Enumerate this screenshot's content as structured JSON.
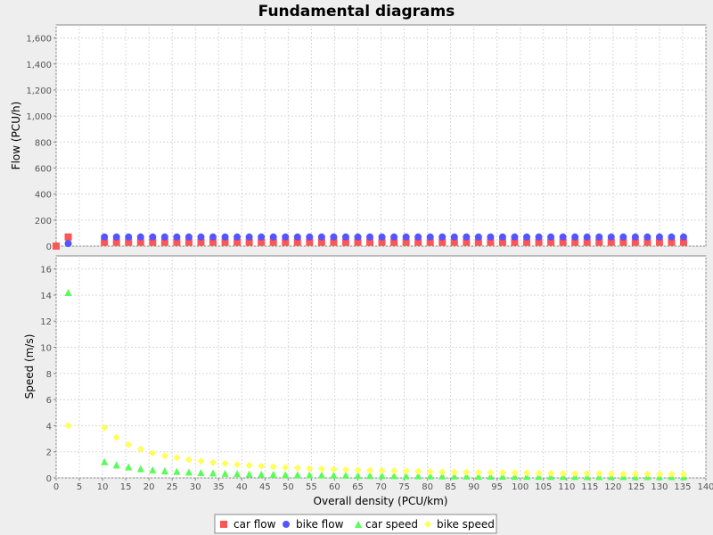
{
  "chart_data": {
    "type": "scatter",
    "title": "Fundamental diagrams",
    "xlabel": "Overall density (PCU/km)",
    "xlim": [
      0,
      140
    ],
    "x_ticks": [
      "0",
      "5",
      "10",
      "15",
      "20",
      "25",
      "30",
      "35",
      "40",
      "45",
      "50",
      "55",
      "60",
      "65",
      "70",
      "75",
      "80",
      "85",
      "90",
      "95",
      "100",
      "105",
      "110",
      "115",
      "120",
      "125",
      "130",
      "135",
      "140"
    ],
    "grid": true,
    "legend_position": "bottom",
    "legend": [
      "car flow",
      "bike flow",
      "car speed",
      "bike speed"
    ],
    "subplots": [
      {
        "ylabel": "Flow (PCU/h)",
        "ylim": [
          0,
          1700
        ],
        "y_ticks": [
          "0",
          "200",
          "400",
          "600",
          "800",
          "1,000",
          "1,200",
          "1,400",
          "1,600"
        ],
        "series": [
          {
            "name": "car flow",
            "color": "#ff5555",
            "marker": "square",
            "x": [
              0,
              2.6,
              10.4,
              13,
              15.6,
              18.2,
              20.8,
              23.4,
              26,
              28.6,
              31.2,
              33.8,
              36.4,
              39,
              41.6,
              44.2,
              46.8,
              49.4,
              52,
              54.6,
              57.2,
              59.8,
              62.4,
              65,
              67.6,
              70.2,
              72.8,
              75.4,
              78,
              80.6,
              83.2,
              85.8,
              88.4,
              91,
              93.6,
              96.2,
              98.8,
              101.4,
              104,
              106.6,
              109.2,
              111.8,
              114.4,
              117,
              119.6,
              122.2,
              124.8,
              127.4,
              130,
              132.6,
              135.2
            ],
            "y": [
              0,
              70,
              30,
              30,
              30,
              30,
              30,
              30,
              30,
              30,
              30,
              30,
              30,
              30,
              30,
              30,
              30,
              30,
              30,
              30,
              30,
              30,
              30,
              30,
              30,
              30,
              30,
              30,
              30,
              30,
              30,
              30,
              30,
              30,
              30,
              30,
              30,
              30,
              30,
              30,
              30,
              30,
              30,
              30,
              30,
              30,
              30,
              30,
              30,
              30,
              30
            ]
          },
          {
            "name": "bike flow",
            "color": "#5555ff",
            "marker": "circle",
            "x": [
              2.6,
              10.4,
              13,
              15.6,
              18.2,
              20.8,
              23.4,
              26,
              28.6,
              31.2,
              33.8,
              36.4,
              39,
              41.6,
              44.2,
              46.8,
              49.4,
              52,
              54.6,
              57.2,
              59.8,
              62.4,
              65,
              67.6,
              70.2,
              72.8,
              75.4,
              78,
              80.6,
              83.2,
              85.8,
              88.4,
              91,
              93.6,
              96.2,
              98.8,
              101.4,
              104,
              106.6,
              109.2,
              111.8,
              114.4,
              117,
              119.6,
              122.2,
              124.8,
              127.4,
              130,
              132.6,
              135.2
            ],
            "y": [
              20,
              70,
              70,
              70,
              70,
              70,
              70,
              70,
              70,
              70,
              70,
              70,
              70,
              70,
              70,
              70,
              70,
              70,
              70,
              70,
              70,
              70,
              70,
              70,
              70,
              70,
              70,
              70,
              70,
              70,
              70,
              70,
              70,
              70,
              70,
              70,
              70,
              70,
              70,
              70,
              70,
              70,
              70,
              70,
              70,
              70,
              70,
              70,
              70,
              70
            ]
          }
        ]
      },
      {
        "ylabel": "Speed (m/s)",
        "ylim": [
          0,
          17
        ],
        "y_ticks": [
          "0",
          "2",
          "4",
          "6",
          "8",
          "10",
          "12",
          "14",
          "16"
        ],
        "series": [
          {
            "name": "car speed",
            "color": "#55ff55",
            "marker": "triangle",
            "x": [
              2.6,
              10.4,
              13,
              15.6,
              18.2,
              20.8,
              23.4,
              26,
              28.6,
              31.2,
              33.8,
              36.4,
              39,
              41.6,
              44.2,
              46.8,
              49.4,
              52,
              54.6,
              57.2,
              59.8,
              62.4,
              65,
              67.6,
              70.2,
              72.8,
              75.4,
              78,
              80.6,
              83.2,
              85.8,
              88.4,
              91,
              93.6,
              96.2,
              98.8,
              101.4,
              104,
              106.6,
              109.2,
              111.8,
              114.4,
              117,
              119.6,
              122.2,
              124.8,
              127.4,
              130,
              132.6,
              135.2
            ],
            "y": [
              14.2,
              1.25,
              1.0,
              0.85,
              0.72,
              0.62,
              0.55,
              0.5,
              0.45,
              0.42,
              0.38,
              0.35,
              0.33,
              0.31,
              0.29,
              0.28,
              0.26,
              0.25,
              0.24,
              0.23,
              0.22,
              0.21,
              0.2,
              0.19,
              0.19,
              0.18,
              0.17,
              0.17,
              0.16,
              0.16,
              0.15,
              0.15,
              0.14,
              0.14,
              0.14,
              0.13,
              0.13,
              0.13,
              0.12,
              0.12,
              0.12,
              0.11,
              0.11,
              0.11,
              0.11,
              0.1,
              0.1,
              0.1,
              0.1,
              0.1
            ]
          },
          {
            "name": "bike speed",
            "color": "#ffff55",
            "marker": "diamond",
            "x": [
              2.6,
              10.4,
              13,
              15.6,
              18.2,
              20.8,
              23.4,
              26,
              28.6,
              31.2,
              33.8,
              36.4,
              39,
              41.6,
              44.2,
              46.8,
              49.4,
              52,
              54.6,
              57.2,
              59.8,
              62.4,
              65,
              67.6,
              70.2,
              72.8,
              75.4,
              78,
              80.6,
              83.2,
              85.8,
              88.4,
              91,
              93.6,
              96.2,
              98.8,
              101.4,
              104,
              106.6,
              109.2,
              111.8,
              114.4,
              117,
              119.6,
              122.2,
              124.8,
              127.4,
              130,
              132.6,
              135.2
            ],
            "y": [
              4.0,
              3.85,
              3.1,
              2.55,
              2.2,
              1.9,
              1.7,
              1.55,
              1.4,
              1.28,
              1.18,
              1.1,
              1.02,
              0.96,
              0.9,
              0.85,
              0.8,
              0.76,
              0.72,
              0.69,
              0.66,
              0.63,
              0.6,
              0.58,
              0.56,
              0.54,
              0.52,
              0.5,
              0.48,
              0.47,
              0.45,
              0.44,
              0.43,
              0.41,
              0.4,
              0.39,
              0.38,
              0.37,
              0.36,
              0.35,
              0.34,
              0.34,
              0.33,
              0.32,
              0.31,
              0.31,
              0.3,
              0.29,
              0.29,
              0.28
            ]
          }
        ]
      }
    ]
  }
}
